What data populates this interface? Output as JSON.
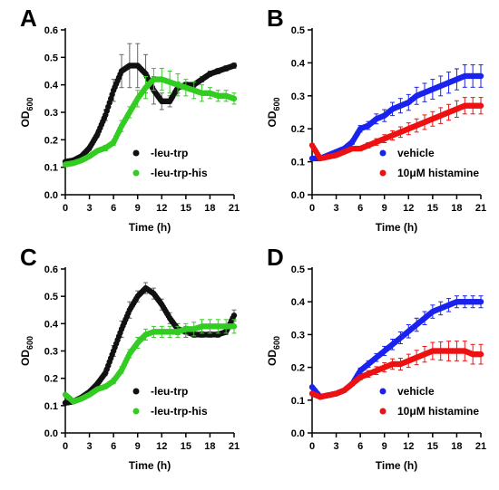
{
  "colors": {
    "black": "#111111",
    "green": "#33cc22",
    "blue": "#1a22ee",
    "red": "#ee1111",
    "error_green": "#33cc22",
    "error_grey": "#666666"
  },
  "chart_data": [
    {
      "panel": "A",
      "type": "scatter",
      "xlabel": "Time (h)",
      "ylabel": "OD",
      "ylabel_sub": "600",
      "xlim": [
        0,
        21
      ],
      "ylim": [
        0,
        0.6
      ],
      "xticks": [
        0,
        3,
        6,
        9,
        12,
        15,
        18,
        21
      ],
      "yticks": [
        0,
        0.1,
        0.2,
        0.3,
        0.4,
        0.5,
        0.6
      ],
      "ytick_labels": [
        "0.0",
        "0.1",
        "0.2",
        "0.3",
        "0.4",
        "0.5",
        "0.6"
      ],
      "legend_position": "bottom-right",
      "series": [
        {
          "name": "-leu-trp",
          "color": "black",
          "x": [
            0,
            1,
            2,
            3,
            4,
            5,
            6,
            7,
            8,
            9,
            10,
            11,
            12,
            13,
            14,
            15,
            16,
            17,
            18,
            19,
            20,
            21
          ],
          "y": [
            0.12,
            0.125,
            0.14,
            0.17,
            0.22,
            0.29,
            0.38,
            0.45,
            0.47,
            0.47,
            0.44,
            0.38,
            0.34,
            0.34,
            0.39,
            0.4,
            0.4,
            0.42,
            0.44,
            0.45,
            0.46,
            0.47
          ],
          "err": [
            0.005,
            0.005,
            0.005,
            0.008,
            0.01,
            0.02,
            0.04,
            0.06,
            0.08,
            0.08,
            0.07,
            0.05,
            0.03,
            0.02,
            0.02,
            0.01,
            0.01,
            0.01,
            0.01,
            0.01,
            0.01,
            0.01
          ]
        },
        {
          "name": "-leu-trp-his",
          "color": "green",
          "x": [
            0,
            1,
            2,
            3,
            4,
            5,
            6,
            7,
            8,
            9,
            10,
            11,
            12,
            13,
            14,
            15,
            16,
            17,
            18,
            19,
            20,
            21
          ],
          "y": [
            0.11,
            0.115,
            0.125,
            0.14,
            0.16,
            0.17,
            0.19,
            0.25,
            0.3,
            0.35,
            0.39,
            0.42,
            0.42,
            0.41,
            0.4,
            0.39,
            0.38,
            0.37,
            0.37,
            0.36,
            0.36,
            0.35
          ],
          "err": [
            0.005,
            0.005,
            0.005,
            0.005,
            0.005,
            0.01,
            0.01,
            0.02,
            0.02,
            0.03,
            0.04,
            0.04,
            0.04,
            0.04,
            0.04,
            0.03,
            0.03,
            0.03,
            0.02,
            0.02,
            0.02,
            0.02
          ]
        }
      ]
    },
    {
      "panel": "B",
      "type": "scatter",
      "xlabel": "Time (h)",
      "ylabel": "OD",
      "ylabel_sub": "600",
      "xlim": [
        0,
        21
      ],
      "ylim": [
        0,
        0.5
      ],
      "xticks": [
        0,
        3,
        6,
        9,
        12,
        15,
        18,
        21
      ],
      "yticks": [
        0,
        0.1,
        0.2,
        0.3,
        0.4,
        0.5
      ],
      "ytick_labels": [
        "0.0",
        "0.1",
        "0.2",
        "0.3",
        "0.4",
        "0.5"
      ],
      "legend_position": "bottom-right",
      "series": [
        {
          "name": "vehicle",
          "color": "blue",
          "x": [
            0,
            1,
            2,
            3,
            4,
            5,
            6,
            7,
            8,
            9,
            10,
            11,
            12,
            13,
            14,
            15,
            16,
            17,
            18,
            19,
            20,
            21
          ],
          "y": [
            0.11,
            0.11,
            0.12,
            0.13,
            0.14,
            0.16,
            0.2,
            0.21,
            0.23,
            0.24,
            0.26,
            0.27,
            0.28,
            0.3,
            0.31,
            0.32,
            0.33,
            0.34,
            0.35,
            0.36,
            0.36,
            0.36
          ],
          "err": [
            0.003,
            0.003,
            0.003,
            0.005,
            0.005,
            0.007,
            0.01,
            0.012,
            0.015,
            0.018,
            0.02,
            0.022,
            0.024,
            0.026,
            0.028,
            0.03,
            0.03,
            0.032,
            0.032,
            0.034,
            0.034,
            0.034
          ]
        },
        {
          "name": "10μM histamine",
          "color": "red",
          "x": [
            0,
            1,
            2,
            3,
            4,
            5,
            6,
            7,
            8,
            9,
            10,
            11,
            12,
            13,
            14,
            15,
            16,
            17,
            18,
            19,
            20,
            21
          ],
          "y": [
            0.15,
            0.11,
            0.115,
            0.12,
            0.13,
            0.14,
            0.14,
            0.15,
            0.16,
            0.17,
            0.18,
            0.19,
            0.2,
            0.21,
            0.22,
            0.23,
            0.24,
            0.25,
            0.26,
            0.27,
            0.27,
            0.27
          ],
          "err": [
            0.003,
            0.003,
            0.003,
            0.004,
            0.004,
            0.005,
            0.006,
            0.008,
            0.01,
            0.012,
            0.014,
            0.016,
            0.018,
            0.02,
            0.022,
            0.022,
            0.024,
            0.024,
            0.025,
            0.025,
            0.025,
            0.025
          ]
        }
      ]
    },
    {
      "panel": "C",
      "type": "scatter",
      "xlabel": "Time (h)",
      "ylabel": "OD",
      "ylabel_sub": "600",
      "xlim": [
        0,
        21
      ],
      "ylim": [
        0,
        0.6
      ],
      "xticks": [
        0,
        3,
        6,
        9,
        12,
        15,
        18,
        21
      ],
      "yticks": [
        0,
        0.1,
        0.2,
        0.3,
        0.4,
        0.5,
        0.6
      ],
      "ytick_labels": [
        "0.0",
        "0.1",
        "0.2",
        "0.3",
        "0.4",
        "0.5",
        "0.6"
      ],
      "legend_position": "bottom-right",
      "series": [
        {
          "name": "-leu-trp",
          "color": "black",
          "x": [
            0,
            1,
            2,
            3,
            4,
            5,
            6,
            7,
            8,
            9,
            10,
            11,
            12,
            13,
            14,
            15,
            16,
            17,
            18,
            19,
            20,
            21
          ],
          "y": [
            0.11,
            0.115,
            0.13,
            0.15,
            0.18,
            0.22,
            0.3,
            0.38,
            0.45,
            0.5,
            0.53,
            0.51,
            0.47,
            0.42,
            0.38,
            0.37,
            0.36,
            0.36,
            0.36,
            0.36,
            0.37,
            0.43
          ],
          "err": [
            0.003,
            0.003,
            0.005,
            0.006,
            0.008,
            0.01,
            0.02,
            0.03,
            0.03,
            0.02,
            0.02,
            0.02,
            0.02,
            0.02,
            0.02,
            0.02,
            0.01,
            0.01,
            0.01,
            0.01,
            0.01,
            0.02
          ]
        },
        {
          "name": "-leu-trp-his",
          "color": "green",
          "x": [
            0,
            1,
            2,
            3,
            4,
            5,
            6,
            7,
            8,
            9,
            10,
            11,
            12,
            13,
            14,
            15,
            16,
            17,
            18,
            19,
            20,
            21
          ],
          "y": [
            0.14,
            0.115,
            0.125,
            0.14,
            0.16,
            0.17,
            0.19,
            0.23,
            0.29,
            0.33,
            0.36,
            0.37,
            0.37,
            0.37,
            0.37,
            0.38,
            0.38,
            0.39,
            0.39,
            0.39,
            0.39,
            0.39
          ],
          "err": [
            0.005,
            0.005,
            0.005,
            0.005,
            0.006,
            0.008,
            0.01,
            0.012,
            0.015,
            0.02,
            0.02,
            0.02,
            0.02,
            0.02,
            0.02,
            0.02,
            0.025,
            0.025,
            0.025,
            0.025,
            0.025,
            0.025
          ]
        }
      ]
    },
    {
      "panel": "D",
      "type": "scatter",
      "xlabel": "Time (h)",
      "ylabel": "OD",
      "ylabel_sub": "600",
      "xlim": [
        0,
        21
      ],
      "ylim": [
        0,
        0.5
      ],
      "xticks": [
        0,
        3,
        6,
        9,
        12,
        15,
        18,
        21
      ],
      "yticks": [
        0,
        0.1,
        0.2,
        0.3,
        0.4,
        0.5
      ],
      "ytick_labels": [
        "0.0",
        "0.1",
        "0.2",
        "0.3",
        "0.4",
        "0.5"
      ],
      "legend_position": "bottom-right",
      "series": [
        {
          "name": "vehicle",
          "color": "blue",
          "x": [
            0,
            1,
            2,
            3,
            4,
            5,
            6,
            7,
            8,
            9,
            10,
            11,
            12,
            13,
            14,
            15,
            16,
            17,
            18,
            19,
            20,
            21
          ],
          "y": [
            0.14,
            0.11,
            0.115,
            0.12,
            0.13,
            0.15,
            0.19,
            0.21,
            0.23,
            0.25,
            0.27,
            0.29,
            0.31,
            0.33,
            0.35,
            0.37,
            0.38,
            0.39,
            0.4,
            0.4,
            0.4,
            0.4
          ],
          "err": [
            0.003,
            0.003,
            0.003,
            0.004,
            0.005,
            0.006,
            0.008,
            0.01,
            0.012,
            0.014,
            0.016,
            0.018,
            0.02,
            0.02,
            0.02,
            0.02,
            0.02,
            0.02,
            0.018,
            0.018,
            0.018,
            0.018
          ]
        },
        {
          "name": "10μM histamine",
          "color": "red",
          "x": [
            0,
            1,
            2,
            3,
            4,
            5,
            6,
            7,
            8,
            9,
            10,
            11,
            12,
            13,
            14,
            15,
            16,
            17,
            18,
            19,
            20,
            21
          ],
          "y": [
            0.12,
            0.11,
            0.115,
            0.12,
            0.13,
            0.15,
            0.17,
            0.18,
            0.19,
            0.2,
            0.21,
            0.21,
            0.22,
            0.23,
            0.24,
            0.25,
            0.25,
            0.25,
            0.25,
            0.25,
            0.24,
            0.24
          ],
          "err": [
            0.003,
            0.003,
            0.003,
            0.004,
            0.005,
            0.006,
            0.008,
            0.01,
            0.012,
            0.014,
            0.016,
            0.018,
            0.02,
            0.022,
            0.024,
            0.026,
            0.028,
            0.03,
            0.03,
            0.03,
            0.03,
            0.03
          ]
        }
      ]
    }
  ]
}
